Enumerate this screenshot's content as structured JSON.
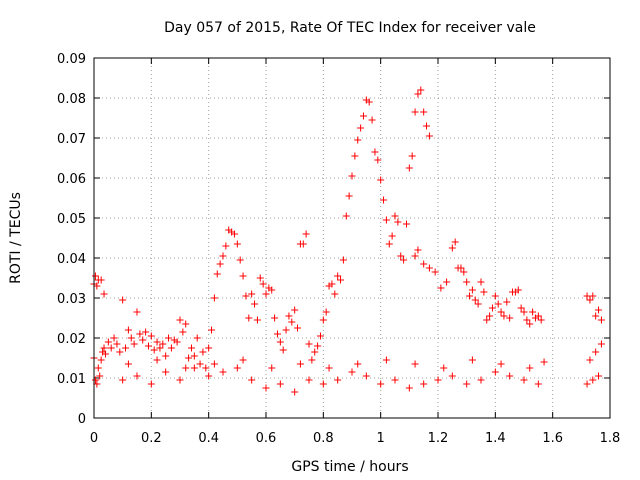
{
  "chart_data": {
    "type": "scatter",
    "title": "Day 057 of 2015, Rate Of TEC Index for receiver vale",
    "xlabel": "GPS time / hours",
    "ylabel": "ROTI / TECUs",
    "xlim": [
      0,
      1.8
    ],
    "ylim": [
      0,
      0.09
    ],
    "xticks": [
      0,
      0.2,
      0.4,
      0.6,
      0.8,
      1,
      1.2,
      1.4,
      1.6,
      1.8
    ],
    "xtick_labels": [
      "0",
      "0.2",
      "0.4",
      "0.6",
      "0.8",
      "1",
      "1.2",
      "1.4",
      "1.6",
      "1.8"
    ],
    "yticks": [
      0,
      0.01,
      0.02,
      0.03,
      0.04,
      0.05,
      0.06,
      0.07,
      0.08,
      0.09
    ],
    "ytick_labels": [
      "0",
      "0.01",
      "0.02",
      "0.03",
      "0.04",
      "0.05",
      "0.06",
      "0.07",
      "0.08",
      "0.09"
    ],
    "grid": true,
    "marker": "+",
    "color": "#ff0000",
    "series": [
      {
        "name": "ROTI",
        "points": [
          [
            0.0,
            0.0335
          ],
          [
            0.005,
            0.0355
          ],
          [
            0.01,
            0.033
          ],
          [
            0.015,
            0.0345
          ],
          [
            0.025,
            0.0345
          ],
          [
            0.035,
            0.031
          ],
          [
            0.0,
            0.015
          ],
          [
            0.005,
            0.0095
          ],
          [
            0.01,
            0.0085
          ],
          [
            0.015,
            0.0125
          ],
          [
            0.02,
            0.0105
          ],
          [
            0.025,
            0.0145
          ],
          [
            0.03,
            0.0165
          ],
          [
            0.035,
            0.0175
          ],
          [
            0.04,
            0.016
          ],
          [
            0.05,
            0.019
          ],
          [
            0.06,
            0.0175
          ],
          [
            0.07,
            0.02
          ],
          [
            0.08,
            0.0185
          ],
          [
            0.09,
            0.0165
          ],
          [
            0.1,
            0.0295
          ],
          [
            0.11,
            0.0175
          ],
          [
            0.12,
            0.022
          ],
          [
            0.13,
            0.02
          ],
          [
            0.14,
            0.0185
          ],
          [
            0.15,
            0.0265
          ],
          [
            0.16,
            0.021
          ],
          [
            0.17,
            0.0195
          ],
          [
            0.18,
            0.0215
          ],
          [
            0.19,
            0.018
          ],
          [
            0.2,
            0.0205
          ],
          [
            0.21,
            0.017
          ],
          [
            0.22,
            0.019
          ],
          [
            0.23,
            0.0175
          ],
          [
            0.24,
            0.0185
          ],
          [
            0.25,
            0.0155
          ],
          [
            0.26,
            0.02
          ],
          [
            0.27,
            0.0175
          ],
          [
            0.28,
            0.0195
          ],
          [
            0.29,
            0.019
          ],
          [
            0.3,
            0.0245
          ],
          [
            0.31,
            0.0215
          ],
          [
            0.32,
            0.0235
          ],
          [
            0.33,
            0.015
          ],
          [
            0.34,
            0.0175
          ],
          [
            0.35,
            0.0155
          ],
          [
            0.36,
            0.02
          ],
          [
            0.37,
            0.0135
          ],
          [
            0.38,
            0.0165
          ],
          [
            0.39,
            0.0125
          ],
          [
            0.4,
            0.0175
          ],
          [
            0.41,
            0.022
          ],
          [
            0.42,
            0.03
          ],
          [
            0.43,
            0.036
          ],
          [
            0.44,
            0.0385
          ],
          [
            0.45,
            0.0405
          ],
          [
            0.46,
            0.043
          ],
          [
            0.47,
            0.047
          ],
          [
            0.48,
            0.0465
          ],
          [
            0.49,
            0.046
          ],
          [
            0.5,
            0.0435
          ],
          [
            0.51,
            0.0395
          ],
          [
            0.52,
            0.0355
          ],
          [
            0.53,
            0.0305
          ],
          [
            0.54,
            0.025
          ],
          [
            0.55,
            0.031
          ],
          [
            0.56,
            0.0285
          ],
          [
            0.57,
            0.0245
          ],
          [
            0.58,
            0.035
          ],
          [
            0.59,
            0.0335
          ],
          [
            0.6,
            0.031
          ],
          [
            0.61,
            0.0325
          ],
          [
            0.62,
            0.032
          ],
          [
            0.63,
            0.025
          ],
          [
            0.64,
            0.021
          ],
          [
            0.65,
            0.019
          ],
          [
            0.66,
            0.017
          ],
          [
            0.67,
            0.022
          ],
          [
            0.68,
            0.0255
          ],
          [
            0.69,
            0.024
          ],
          [
            0.7,
            0.027
          ],
          [
            0.71,
            0.0225
          ],
          [
            0.72,
            0.0435
          ],
          [
            0.73,
            0.0435
          ],
          [
            0.74,
            0.046
          ],
          [
            0.75,
            0.0185
          ],
          [
            0.76,
            0.0145
          ],
          [
            0.77,
            0.0165
          ],
          [
            0.78,
            0.018
          ],
          [
            0.79,
            0.0205
          ],
          [
            0.8,
            0.0245
          ],
          [
            0.81,
            0.0265
          ],
          [
            0.82,
            0.033
          ],
          [
            0.83,
            0.0335
          ],
          [
            0.84,
            0.031
          ],
          [
            0.85,
            0.0355
          ],
          [
            0.86,
            0.0345
          ],
          [
            0.87,
            0.0395
          ],
          [
            0.88,
            0.0505
          ],
          [
            0.89,
            0.0555
          ],
          [
            0.9,
            0.0605
          ],
          [
            0.91,
            0.0655
          ],
          [
            0.92,
            0.0695
          ],
          [
            0.93,
            0.0725
          ],
          [
            0.94,
            0.0755
          ],
          [
            0.95,
            0.0795
          ],
          [
            0.96,
            0.079
          ],
          [
            0.97,
            0.0745
          ],
          [
            0.98,
            0.0665
          ],
          [
            0.99,
            0.0645
          ],
          [
            1.0,
            0.0595
          ],
          [
            1.01,
            0.0545
          ],
          [
            1.02,
            0.0495
          ],
          [
            1.03,
            0.0435
          ],
          [
            1.04,
            0.0455
          ],
          [
            1.05,
            0.0505
          ],
          [
            1.06,
            0.049
          ],
          [
            1.07,
            0.0405
          ],
          [
            1.08,
            0.0395
          ],
          [
            1.09,
            0.0485
          ],
          [
            1.1,
            0.0625
          ],
          [
            1.11,
            0.0655
          ],
          [
            1.12,
            0.0765
          ],
          [
            1.13,
            0.081
          ],
          [
            1.14,
            0.082
          ],
          [
            1.15,
            0.0765
          ],
          [
            1.16,
            0.073
          ],
          [
            1.17,
            0.0705
          ],
          [
            1.12,
            0.0405
          ],
          [
            1.13,
            0.042
          ],
          [
            1.15,
            0.0385
          ],
          [
            1.17,
            0.0375
          ],
          [
            1.19,
            0.0365
          ],
          [
            1.21,
            0.0325
          ],
          [
            1.23,
            0.034
          ],
          [
            1.25,
            0.0425
          ],
          [
            1.26,
            0.044
          ],
          [
            1.27,
            0.0375
          ],
          [
            1.28,
            0.0375
          ],
          [
            1.29,
            0.0365
          ],
          [
            1.3,
            0.034
          ],
          [
            1.31,
            0.0305
          ],
          [
            1.32,
            0.032
          ],
          [
            1.33,
            0.0295
          ],
          [
            1.34,
            0.0285
          ],
          [
            1.35,
            0.034
          ],
          [
            1.36,
            0.0315
          ],
          [
            1.37,
            0.0245
          ],
          [
            1.38,
            0.0255
          ],
          [
            1.39,
            0.0275
          ],
          [
            1.4,
            0.0305
          ],
          [
            1.41,
            0.0285
          ],
          [
            1.42,
            0.0265
          ],
          [
            1.43,
            0.0255
          ],
          [
            1.44,
            0.029
          ],
          [
            1.45,
            0.025
          ],
          [
            1.46,
            0.0315
          ],
          [
            1.47,
            0.0315
          ],
          [
            1.48,
            0.032
          ],
          [
            1.49,
            0.0275
          ],
          [
            1.5,
            0.0265
          ],
          [
            1.51,
            0.0245
          ],
          [
            1.52,
            0.0235
          ],
          [
            1.53,
            0.0265
          ],
          [
            1.54,
            0.025
          ],
          [
            1.55,
            0.0255
          ],
          [
            1.56,
            0.0245
          ],
          [
            1.57,
            0.014
          ],
          [
            1.72,
            0.0305
          ],
          [
            1.73,
            0.0295
          ],
          [
            1.74,
            0.0305
          ],
          [
            1.75,
            0.0255
          ],
          [
            1.76,
            0.027
          ],
          [
            1.77,
            0.0245
          ],
          [
            0.1,
            0.0095
          ],
          [
            0.15,
            0.0105
          ],
          [
            0.2,
            0.0085
          ],
          [
            0.25,
            0.0115
          ],
          [
            0.3,
            0.0095
          ],
          [
            0.35,
            0.0125
          ],
          [
            0.4,
            0.0105
          ],
          [
            0.45,
            0.0115
          ],
          [
            0.5,
            0.0125
          ],
          [
            0.55,
            0.0095
          ],
          [
            0.6,
            0.0075
          ],
          [
            0.65,
            0.0085
          ],
          [
            0.7,
            0.0065
          ],
          [
            0.75,
            0.0095
          ],
          [
            0.8,
            0.0085
          ],
          [
            0.85,
            0.0095
          ],
          [
            0.9,
            0.0115
          ],
          [
            0.95,
            0.0105
          ],
          [
            1.0,
            0.0085
          ],
          [
            1.05,
            0.0095
          ],
          [
            1.1,
            0.0075
          ],
          [
            1.15,
            0.0085
          ],
          [
            1.2,
            0.0095
          ],
          [
            1.25,
            0.0105
          ],
          [
            1.3,
            0.0085
          ],
          [
            1.35,
            0.0095
          ],
          [
            1.4,
            0.0115
          ],
          [
            1.45,
            0.0105
          ],
          [
            1.5,
            0.0095
          ],
          [
            1.55,
            0.0085
          ],
          [
            1.72,
            0.0085
          ],
          [
            1.74,
            0.0095
          ],
          [
            1.76,
            0.0105
          ],
          [
            0.12,
            0.0135
          ],
          [
            0.22,
            0.0145
          ],
          [
            0.32,
            0.0125
          ],
          [
            0.42,
            0.0135
          ],
          [
            0.52,
            0.0145
          ],
          [
            0.62,
            0.0125
          ],
          [
            0.72,
            0.0135
          ],
          [
            0.82,
            0.0125
          ],
          [
            0.92,
            0.0135
          ],
          [
            1.02,
            0.0145
          ],
          [
            1.12,
            0.0135
          ],
          [
            1.22,
            0.0125
          ],
          [
            1.32,
            0.0145
          ],
          [
            1.42,
            0.0135
          ],
          [
            1.52,
            0.0125
          ],
          [
            1.73,
            0.0145
          ],
          [
            1.75,
            0.0165
          ],
          [
            1.77,
            0.0185
          ]
        ]
      }
    ]
  }
}
